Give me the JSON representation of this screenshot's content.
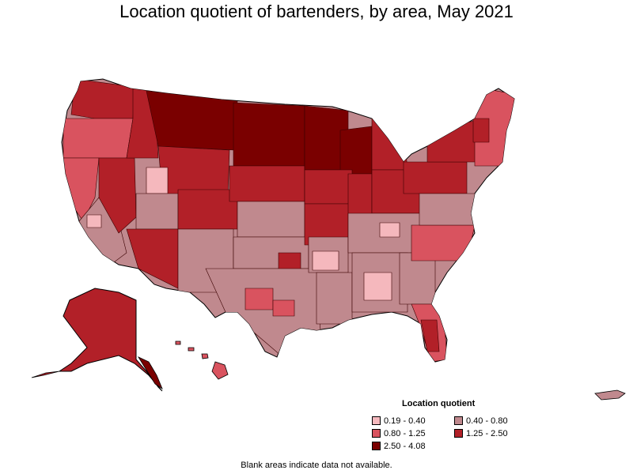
{
  "title": "Location quotient of bartenders, by area, May 2021",
  "legend": {
    "title": "Location quotient",
    "items": [
      {
        "label": "0.19 - 0.40",
        "color": "#f5b8bd"
      },
      {
        "label": "0.40 - 0.80",
        "color": "#c0898e"
      },
      {
        "label": "0.80 - 1.25",
        "color": "#d9535f"
      },
      {
        "label": "1.25 - 2.50",
        "color": "#b22028"
      },
      {
        "label": "2.50 - 4.08",
        "color": "#7a0000"
      }
    ]
  },
  "footnote": "Blank areas indicate data not available.",
  "colors": {
    "q1": "#f5b8bd",
    "q2": "#c0898e",
    "q3": "#d9535f",
    "q4": "#b22028",
    "q5": "#7a0000",
    "border": "#000000"
  }
}
